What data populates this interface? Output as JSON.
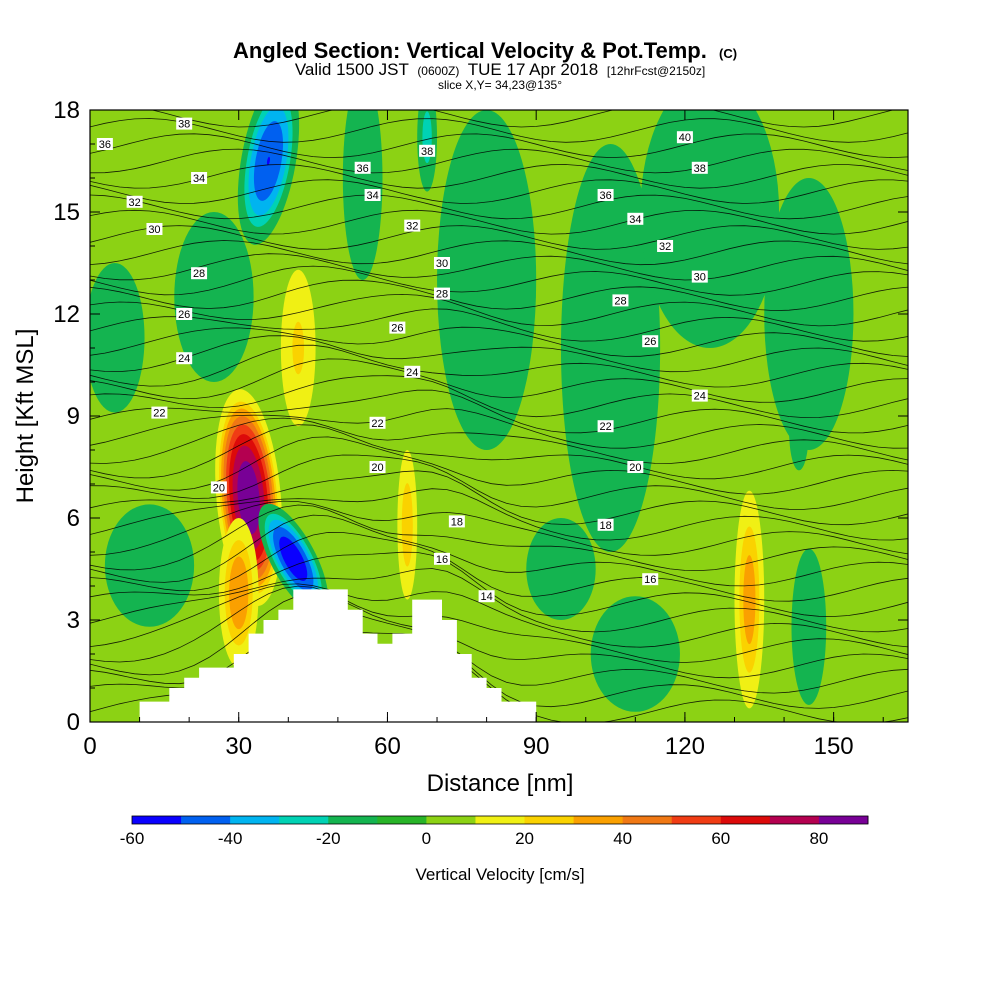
{
  "chart_data": {
    "type": "heatmap",
    "title": "Angled Section: Vertical Velocity & Pot.Temp.",
    "title_unit": "(C)",
    "subtitle": {
      "valid_local": "Valid 1500 JST",
      "valid_utc": "(0600Z)",
      "date": "TUE 17 Apr 2018",
      "forecast": "[12hrFcst@2150z]"
    },
    "slice_label": "slice X,Y= 34,23@135°",
    "xlabel": "Distance [nm]",
    "ylabel": "Height [Kft MSL]",
    "xlim": [
      0,
      165
    ],
    "ylim": [
      0,
      18
    ],
    "xticks": [
      "0",
      "30",
      "60",
      "90",
      "120",
      "150"
    ],
    "yticks": [
      "0",
      "3",
      "6",
      "9",
      "12",
      "15",
      "18"
    ],
    "colorbar": {
      "label": "Vertical Velocity [cm/s]",
      "levels": [
        -60,
        -50,
        -40,
        -30,
        -20,
        -10,
        0,
        10,
        20,
        30,
        40,
        50,
        60,
        70,
        80,
        90
      ],
      "tick_labels": [
        "-60",
        "-40",
        "-20",
        "0",
        "20",
        "40",
        "60",
        "80"
      ],
      "colors": [
        "#0a00ff",
        "#0060f0",
        "#00b4f0",
        "#00d2b4",
        "#14b450",
        "#28b428",
        "#8cd214",
        "#f0f014",
        "#fad200",
        "#faa000",
        "#f07814",
        "#f03c14",
        "#dc0a0a",
        "#b40050",
        "#780096"
      ]
    },
    "background_color": "#8cd214",
    "w_blobs": [
      {
        "x": 32,
        "y": 6.6,
        "rx": 6.5,
        "ry": 3.2,
        "peak": 88,
        "rot": -5
      },
      {
        "x": 30,
        "y": 3.8,
        "rx": 4,
        "ry": 2.2,
        "peak": 38,
        "rot": 0
      },
      {
        "x": 42,
        "y": 11.0,
        "rx": 3.5,
        "ry": 2.3,
        "peak": 22,
        "rot": 0
      },
      {
        "x": 41,
        "y": 4.8,
        "rx": 4.5,
        "ry": 1.8,
        "peak": -58,
        "rot": -28
      },
      {
        "x": 36,
        "y": 16.5,
        "rx": 5.5,
        "ry": 2.5,
        "peak": -50,
        "rot": 10
      },
      {
        "x": 68,
        "y": 17.2,
        "rx": 2,
        "ry": 1.6,
        "peak": -25,
        "rot": 0
      },
      {
        "x": 64,
        "y": 5.8,
        "rx": 2,
        "ry": 2.2,
        "peak": 28,
        "rot": 0
      },
      {
        "x": 133,
        "y": 3.6,
        "rx": 3,
        "ry": 3.2,
        "peak": 35,
        "rot": 0
      },
      {
        "x": 143,
        "y": 8.6,
        "rx": 2,
        "ry": 1.2,
        "peak": -20,
        "rot": 0
      },
      {
        "x": 5,
        "y": 11.3,
        "rx": 6,
        "ry": 2.2,
        "peak": -12,
        "rot": 0
      },
      {
        "x": 12,
        "y": 4.6,
        "rx": 9,
        "ry": 1.8,
        "peak": -14,
        "rot": 0
      },
      {
        "x": 55,
        "y": 16,
        "rx": 4,
        "ry": 3,
        "peak": -13,
        "rot": 0
      },
      {
        "x": 80,
        "y": 13,
        "rx": 10,
        "ry": 5,
        "peak": -13,
        "rot": 0
      },
      {
        "x": 105,
        "y": 11,
        "rx": 10,
        "ry": 6,
        "peak": -14,
        "rot": 0
      },
      {
        "x": 125,
        "y": 15,
        "rx": 14,
        "ry": 4,
        "peak": -14,
        "rot": 0
      },
      {
        "x": 145,
        "y": 12,
        "rx": 9,
        "ry": 4,
        "peak": -12,
        "rot": 0
      },
      {
        "x": 110,
        "y": 2.0,
        "rx": 9,
        "ry": 1.7,
        "peak": -13,
        "rot": 0
      },
      {
        "x": 145,
        "y": 2.8,
        "rx": 3.5,
        "ry": 2.3,
        "peak": -13,
        "rot": 0
      },
      {
        "x": 95,
        "y": 4.5,
        "rx": 7,
        "ry": 1.5,
        "peak": -12,
        "rot": 0
      },
      {
        "x": 25,
        "y": 12.5,
        "rx": 8,
        "ry": 2.5,
        "peak": -12,
        "rot": 0
      }
    ],
    "terrain": [
      {
        "x": 0,
        "y": 0
      },
      {
        "x": 10,
        "y": 0
      },
      {
        "x": 10,
        "y": 0.6
      },
      {
        "x": 16,
        "y": 0.6
      },
      {
        "x": 16,
        "y": 1.0
      },
      {
        "x": 19,
        "y": 1.0
      },
      {
        "x": 19,
        "y": 1.3
      },
      {
        "x": 22,
        "y": 1.3
      },
      {
        "x": 22,
        "y": 1.6
      },
      {
        "x": 29,
        "y": 1.6
      },
      {
        "x": 29,
        "y": 2.0
      },
      {
        "x": 32,
        "y": 2.0
      },
      {
        "x": 32,
        "y": 2.6
      },
      {
        "x": 35,
        "y": 2.6
      },
      {
        "x": 35,
        "y": 3.0
      },
      {
        "x": 38,
        "y": 3.0
      },
      {
        "x": 38,
        "y": 3.3
      },
      {
        "x": 41,
        "y": 3.3
      },
      {
        "x": 41,
        "y": 3.9
      },
      {
        "x": 52,
        "y": 3.9
      },
      {
        "x": 52,
        "y": 3.3
      },
      {
        "x": 55,
        "y": 3.3
      },
      {
        "x": 55,
        "y": 2.6
      },
      {
        "x": 58,
        "y": 2.6
      },
      {
        "x": 58,
        "y": 2.3
      },
      {
        "x": 61,
        "y": 2.3
      },
      {
        "x": 61,
        "y": 2.6
      },
      {
        "x": 65,
        "y": 2.6
      },
      {
        "x": 65,
        "y": 3.6
      },
      {
        "x": 71,
        "y": 3.6
      },
      {
        "x": 71,
        "y": 3.0
      },
      {
        "x": 74,
        "y": 3.0
      },
      {
        "x": 74,
        "y": 2.0
      },
      {
        "x": 77,
        "y": 2.0
      },
      {
        "x": 77,
        "y": 1.3
      },
      {
        "x": 80,
        "y": 1.3
      },
      {
        "x": 80,
        "y": 1.0
      },
      {
        "x": 83,
        "y": 1.0
      },
      {
        "x": 83,
        "y": 0.6
      },
      {
        "x": 90,
        "y": 0.6
      },
      {
        "x": 90,
        "y": 0
      }
    ],
    "isentropes": {
      "levels": [
        14,
        16,
        18,
        20,
        22,
        24,
        26,
        28,
        30,
        32,
        34,
        36,
        38,
        40
      ],
      "spacing_kft": 0.45,
      "labels": [
        {
          "text": "36",
          "x": 3,
          "y": 17.0
        },
        {
          "text": "38",
          "x": 19,
          "y": 17.6
        },
        {
          "text": "34",
          "x": 22,
          "y": 16.0
        },
        {
          "text": "32",
          "x": 9,
          "y": 15.3
        },
        {
          "text": "30",
          "x": 13,
          "y": 14.5
        },
        {
          "text": "28",
          "x": 22,
          "y": 13.2
        },
        {
          "text": "26",
          "x": 19,
          "y": 12.0
        },
        {
          "text": "24",
          "x": 19,
          "y": 10.7
        },
        {
          "text": "22",
          "x": 14,
          "y": 9.1
        },
        {
          "text": "20",
          "x": 26,
          "y": 6.9
        },
        {
          "text": "36",
          "x": 55,
          "y": 16.3
        },
        {
          "text": "34",
          "x": 57,
          "y": 15.5
        },
        {
          "text": "38",
          "x": 68,
          "y": 16.8
        },
        {
          "text": "32",
          "x": 65,
          "y": 14.6
        },
        {
          "text": "30",
          "x": 71,
          "y": 13.5
        },
        {
          "text": "28",
          "x": 71,
          "y": 12.6
        },
        {
          "text": "26",
          "x": 62,
          "y": 11.6
        },
        {
          "text": "24",
          "x": 65,
          "y": 10.3
        },
        {
          "text": "22",
          "x": 58,
          "y": 8.8
        },
        {
          "text": "20",
          "x": 58,
          "y": 7.5
        },
        {
          "text": "18",
          "x": 74,
          "y": 5.9
        },
        {
          "text": "16",
          "x": 71,
          "y": 4.8
        },
        {
          "text": "14",
          "x": 80,
          "y": 3.7
        },
        {
          "text": "40",
          "x": 120,
          "y": 17.2
        },
        {
          "text": "38",
          "x": 123,
          "y": 16.3
        },
        {
          "text": "36",
          "x": 104,
          "y": 15.5
        },
        {
          "text": "34",
          "x": 110,
          "y": 14.8
        },
        {
          "text": "32",
          "x": 116,
          "y": 14.0
        },
        {
          "text": "30",
          "x": 123,
          "y": 13.1
        },
        {
          "text": "28",
          "x": 107,
          "y": 12.4
        },
        {
          "text": "26",
          "x": 113,
          "y": 11.2
        },
        {
          "text": "24",
          "x": 123,
          "y": 9.6
        },
        {
          "text": "22",
          "x": 104,
          "y": 8.7
        },
        {
          "text": "20",
          "x": 110,
          "y": 7.5
        },
        {
          "text": "18",
          "x": 104,
          "y": 5.8
        },
        {
          "text": "16",
          "x": 113,
          "y": 4.2
        }
      ]
    }
  }
}
